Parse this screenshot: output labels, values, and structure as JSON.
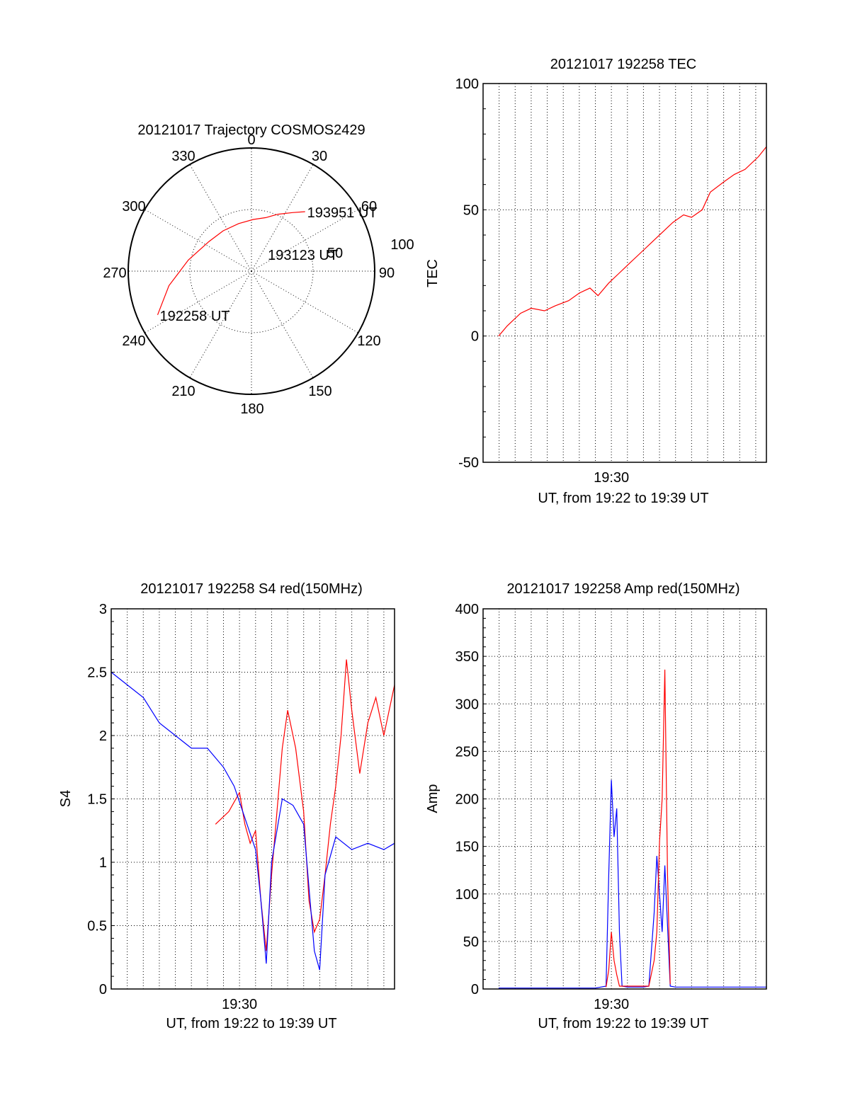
{
  "chart_data": [
    {
      "type": "polar",
      "title": "20121017 Trajectory COSMOS2429",
      "azimuth_labels": [
        "0",
        "30",
        "60",
        "90",
        "120",
        "150",
        "180",
        "210",
        "240",
        "270",
        "300",
        "330"
      ],
      "elevation_labels": [
        "50",
        "100"
      ],
      "series": [
        {
          "color": "#ff0000",
          "points": [
            {
              "az": 245,
              "el": 84
            },
            {
              "az": 260,
              "el": 68
            },
            {
              "az": 280,
              "el": 52
            },
            {
              "az": 305,
              "el": 42
            },
            {
              "az": 325,
              "el": 40
            },
            {
              "az": 345,
              "el": 40
            },
            {
              "az": 2,
              "el": 42
            },
            {
              "az": 15,
              "el": 45
            },
            {
              "az": 25,
              "el": 51
            },
            {
              "az": 35,
              "el": 58
            },
            {
              "az": 42,
              "el": 65
            }
          ]
        }
      ],
      "annotations": [
        {
          "text": "192258 UT",
          "az": 245,
          "el": 84
        },
        {
          "text": "193123 UT",
          "az": 40,
          "el": 18
        },
        {
          "text": "193951 UT",
          "az": 42,
          "el": 65
        }
      ]
    },
    {
      "type": "line",
      "title": "20121017 192258 TEC",
      "xlabel": "UT, from 19:22 to 19:39 UT",
      "ylabel": "TEC",
      "xlim": [
        "19:22:00",
        "19:39:40"
      ],
      "ylim": [
        -50,
        100
      ],
      "x_tick_labels": [
        "19:30"
      ],
      "y_ticks": [
        -50,
        0,
        50,
        100
      ],
      "grid": true,
      "series": [
        {
          "color": "#ff0000",
          "x": [
            "19:22:58",
            "19:23:30",
            "19:24:20",
            "19:25:00",
            "19:25:50",
            "19:26:30",
            "19:27:20",
            "19:28:00",
            "19:28:40",
            "19:29:10",
            "19:29:50",
            "19:30:30",
            "19:31:10",
            "19:31:50",
            "19:32:30",
            "19:33:10",
            "19:33:50",
            "19:34:30",
            "19:35:00",
            "19:35:40",
            "19:36:10",
            "19:37:00",
            "19:37:40",
            "19:38:20",
            "19:39:10",
            "19:39:40"
          ],
          "y": [
            0,
            4,
            9,
            11,
            10,
            12,
            14,
            17,
            19,
            16,
            21,
            25,
            29,
            33,
            37,
            41,
            45,
            48,
            47,
            50,
            57,
            61,
            64,
            66,
            71,
            75
          ]
        }
      ]
    },
    {
      "type": "line",
      "title": "20121017 192258 S4 red(150MHz)",
      "xlabel": "UT, from 19:22 to 19:39 UT",
      "ylabel": "S4",
      "xlim": [
        "19:22:00",
        "19:39:40"
      ],
      "ylim": [
        0,
        3
      ],
      "x_tick_labels": [
        "19:30"
      ],
      "y_ticks": [
        0,
        0.5,
        1,
        1.5,
        2,
        2.5,
        3
      ],
      "grid": true,
      "series": [
        {
          "color": "#ff0000",
          "x": [
            "19:28:30",
            "19:29:20",
            "19:30:00",
            "19:30:20",
            "19:30:40",
            "19:31:00",
            "19:31:20",
            "19:31:40",
            "19:32:00",
            "19:32:20",
            "19:32:40",
            "19:33:00",
            "19:33:30",
            "19:34:00",
            "19:34:20",
            "19:34:40",
            "19:35:00",
            "19:35:20",
            "19:35:40",
            "19:36:00",
            "19:36:20",
            "19:36:40",
            "19:37:00",
            "19:37:30",
            "19:38:00",
            "19:38:30",
            "19:39:00",
            "19:39:40"
          ],
          "y": [
            1.3,
            1.4,
            1.55,
            1.3,
            1.15,
            1.25,
            0.7,
            0.3,
            0.9,
            1.4,
            1.9,
            2.2,
            1.9,
            1.4,
            0.7,
            0.45,
            0.55,
            0.9,
            1.3,
            1.6,
            2.0,
            2.6,
            2.2,
            1.7,
            2.1,
            2.3,
            2.0,
            2.4
          ]
        },
        {
          "color": "#0000ff",
          "x": [
            "19:22:00",
            "19:23:00",
            "19:24:00",
            "19:25:00",
            "19:26:00",
            "19:27:00",
            "19:28:00",
            "19:29:00",
            "19:29:40",
            "19:30:20",
            "19:31:00",
            "19:31:20",
            "19:31:40",
            "19:32:00",
            "19:32:40",
            "19:33:20",
            "19:34:00",
            "19:34:20",
            "19:34:40",
            "19:35:00",
            "19:35:20",
            "19:36:00",
            "19:37:00",
            "19:38:00",
            "19:39:00",
            "19:39:40"
          ],
          "y": [
            2.5,
            2.4,
            2.3,
            2.1,
            2.0,
            1.9,
            1.9,
            1.75,
            1.6,
            1.35,
            1.1,
            0.7,
            0.2,
            1.0,
            1.5,
            1.45,
            1.3,
            0.8,
            0.3,
            0.15,
            0.9,
            1.2,
            1.1,
            1.15,
            1.1,
            1.15
          ]
        }
      ]
    },
    {
      "type": "line",
      "title": "20121017 192258 Amp red(150MHz)",
      "xlabel": "UT, from 19:22 to 19:39 UT",
      "ylabel": "Amp",
      "xlim": [
        "19:22:00",
        "19:39:40"
      ],
      "ylim": [
        0,
        400
      ],
      "x_tick_labels": [
        "19:30"
      ],
      "y_ticks": [
        0,
        50,
        100,
        150,
        200,
        250,
        300,
        350,
        400
      ],
      "grid": true,
      "series": [
        {
          "color": "#0000ff",
          "x": [
            "19:22:58",
            "19:29:00",
            "19:29:40",
            "19:29:50",
            "19:30:00",
            "19:30:10",
            "19:30:20",
            "19:30:30",
            "19:30:40",
            "19:31:00",
            "19:32:00",
            "19:32:20",
            "19:32:40",
            "19:32:50",
            "19:33:00",
            "19:33:10",
            "19:33:20",
            "19:33:40",
            "19:34:00",
            "19:39:40"
          ],
          "y": [
            1,
            1,
            3,
            120,
            220,
            160,
            190,
            60,
            3,
            2,
            2,
            3,
            80,
            140,
            100,
            60,
            130,
            3,
            2,
            2
          ]
        },
        {
          "color": "#ff0000",
          "x": [
            "19:29:40",
            "19:29:50",
            "19:30:00",
            "19:30:10",
            "19:30:20",
            "19:30:30",
            "19:32:20",
            "19:32:40",
            "19:32:50",
            "19:33:00",
            "19:33:10",
            "19:33:20",
            "19:33:30",
            "19:33:40"
          ],
          "y": [
            2,
            20,
            60,
            30,
            15,
            3,
            3,
            30,
            60,
            155,
            200,
            336,
            120,
            5
          ]
        }
      ]
    }
  ]
}
